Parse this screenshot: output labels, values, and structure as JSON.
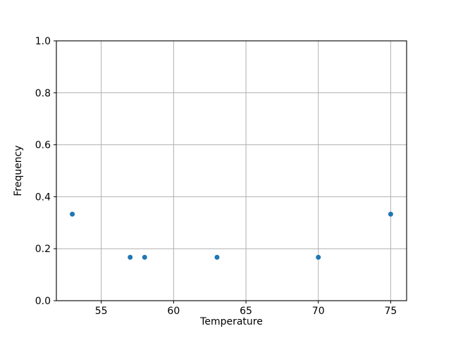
{
  "chart_data": {
    "type": "scatter",
    "title": "",
    "xlabel": "Temperature",
    "ylabel": "Frequency",
    "x": [
      53,
      57,
      58,
      63,
      70,
      75
    ],
    "y": [
      0.333,
      0.167,
      0.167,
      0.167,
      0.167,
      0.333
    ],
    "xlim": [
      51.9,
      76.1
    ],
    "ylim": [
      0.0,
      1.0
    ],
    "xticks": [
      "55",
      "60",
      "65",
      "70",
      "75"
    ],
    "xtick_values": [
      55,
      60,
      65,
      70,
      75
    ],
    "yticks": [
      "0.0",
      "0.2",
      "0.4",
      "0.6",
      "0.8",
      "1.0"
    ],
    "ytick_values": [
      0.0,
      0.2,
      0.4,
      0.6,
      0.8,
      1.0
    ],
    "grid": true,
    "legend": false,
    "marker_color": "#1f77b4",
    "marker_radius_px": 3.5,
    "grid_color": "#b0b0b0",
    "spine_color": "#000000",
    "background": "#ffffff"
  }
}
